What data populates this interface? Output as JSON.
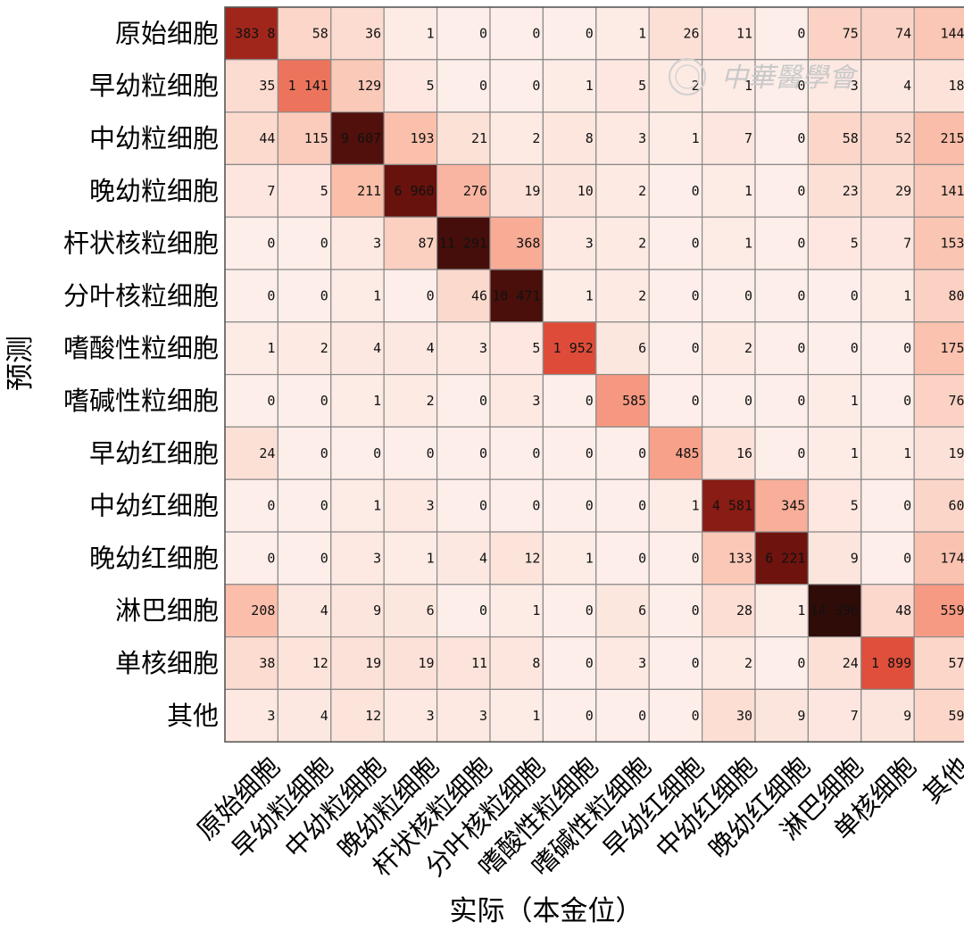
{
  "chart_data": {
    "type": "heatmap",
    "xlabel": "实际（本金位）",
    "ylabel": "预测",
    "labels": [
      "原始细胞",
      "早幼粒细胞",
      "中幼粒细胞",
      "晚幼粒细胞",
      "杆状核粒细胞",
      "分叶核粒细胞",
      "嗜酸性粒细胞",
      "嗜碱性粒细胞",
      "早幼红细胞",
      "中幼红细胞",
      "晚幼红细胞",
      "淋巴细胞",
      "单核细胞",
      "其他"
    ],
    "values": [
      [
        3838,
        58,
        36,
        1,
        0,
        0,
        0,
        1,
        26,
        11,
        0,
        75,
        74,
        144
      ],
      [
        35,
        1141,
        129,
        5,
        0,
        0,
        1,
        5,
        2,
        1,
        0,
        3,
        4,
        18
      ],
      [
        44,
        115,
        9607,
        193,
        21,
        2,
        8,
        3,
        1,
        7,
        0,
        58,
        52,
        215
      ],
      [
        7,
        5,
        211,
        6960,
        276,
        19,
        10,
        2,
        0,
        1,
        0,
        23,
        29,
        141
      ],
      [
        0,
        0,
        3,
        87,
        11291,
        368,
        3,
        2,
        0,
        1,
        0,
        5,
        7,
        153
      ],
      [
        0,
        0,
        1,
        0,
        46,
        10471,
        1,
        2,
        0,
        0,
        0,
        0,
        1,
        80
      ],
      [
        1,
        2,
        4,
        4,
        3,
        5,
        1952,
        6,
        0,
        2,
        0,
        0,
        0,
        175
      ],
      [
        0,
        0,
        1,
        2,
        0,
        3,
        0,
        585,
        0,
        0,
        0,
        1,
        0,
        76
      ],
      [
        24,
        0,
        0,
        0,
        0,
        0,
        0,
        0,
        485,
        16,
        0,
        1,
        1,
        19
      ],
      [
        0,
        0,
        1,
        3,
        0,
        0,
        0,
        0,
        1,
        4581,
        345,
        5,
        0,
        60
      ],
      [
        0,
        0,
        3,
        1,
        4,
        12,
        1,
        0,
        0,
        133,
        6221,
        9,
        0,
        174
      ],
      [
        208,
        4,
        9,
        6,
        0,
        1,
        0,
        6,
        0,
        28,
        1,
        14396,
        48,
        559
      ],
      [
        38,
        12,
        19,
        19,
        11,
        8,
        0,
        3,
        0,
        2,
        0,
        24,
        1899,
        57
      ],
      [
        3,
        4,
        12,
        3,
        3,
        1,
        0,
        0,
        0,
        30,
        9,
        7,
        9,
        59
      ]
    ],
    "value_labels": [
      [
        "383 8",
        "58",
        "36",
        "1",
        "0",
        "0",
        "0",
        "1",
        "26",
        "11",
        "0",
        "75",
        "74",
        "144"
      ],
      [
        "35",
        "1 141",
        "129",
        "5",
        "0",
        "0",
        "1",
        "5",
        "2",
        "1",
        "0",
        "3",
        "4",
        "18"
      ],
      [
        "44",
        "115",
        "9 607",
        "193",
        "21",
        "2",
        "8",
        "3",
        "1",
        "7",
        "0",
        "58",
        "52",
        "215"
      ],
      [
        "7",
        "5",
        "211",
        "6 960",
        "276",
        "19",
        "10",
        "2",
        "0",
        "1",
        "0",
        "23",
        "29",
        "141"
      ],
      [
        "0",
        "0",
        "3",
        "87",
        "11 291",
        "368",
        "3",
        "2",
        "0",
        "1",
        "0",
        "5",
        "7",
        "153"
      ],
      [
        "0",
        "0",
        "1",
        "0",
        "46",
        "10 471",
        "1",
        "2",
        "0",
        "0",
        "0",
        "0",
        "1",
        "80"
      ],
      [
        "1",
        "2",
        "4",
        "4",
        "3",
        "5",
        "1 952",
        "6",
        "0",
        "2",
        "0",
        "0",
        "0",
        "175"
      ],
      [
        "0",
        "0",
        "1",
        "2",
        "0",
        "3",
        "0",
        "585",
        "0",
        "0",
        "0",
        "1",
        "0",
        "76"
      ],
      [
        "24",
        "0",
        "0",
        "0",
        "0",
        "0",
        "0",
        "0",
        "485",
        "16",
        "0",
        "1",
        "1",
        "19"
      ],
      [
        "0",
        "0",
        "1",
        "3",
        "0",
        "0",
        "0",
        "0",
        "1",
        "4 581",
        "345",
        "5",
        "0",
        "60"
      ],
      [
        "0",
        "0",
        "3",
        "1",
        "4",
        "12",
        "1",
        "0",
        "0",
        "133",
        "6 221",
        "9",
        "0",
        "174"
      ],
      [
        "208",
        "4",
        "9",
        "6",
        "0",
        "1",
        "0",
        "6",
        "0",
        "28",
        "1",
        "14 396",
        "48",
        "559"
      ],
      [
        "38",
        "12",
        "19",
        "19",
        "11",
        "8",
        "0",
        "3",
        "0",
        "2",
        "0",
        "24",
        "1 899",
        "57"
      ],
      [
        "3",
        "4",
        "12",
        "3",
        "3",
        "1",
        "0",
        "0",
        "0",
        "30",
        "9",
        "7",
        "9",
        "59"
      ]
    ],
    "grid": true,
    "colors": {
      "low": "#fdeee9",
      "high": "#300c08"
    }
  },
  "watermark": {
    "text": "中華醫學會"
  }
}
